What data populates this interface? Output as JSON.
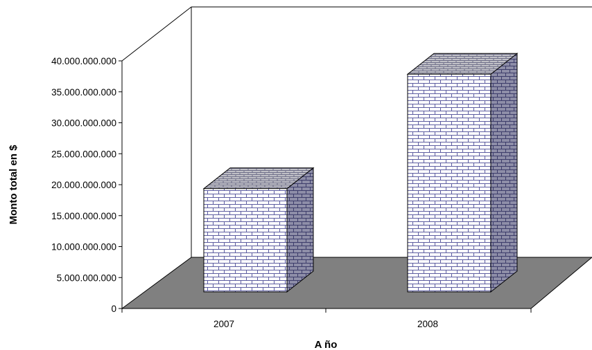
{
  "chart_data": {
    "type": "bar",
    "categories": [
      "2007",
      "2008"
    ],
    "values": [
      17300000000,
      39100000000
    ],
    "xlabel": "A ño",
    "ylabel": "Monto total en $",
    "ylim": [
      0,
      40000000000
    ],
    "yticks": [
      0,
      5000000000,
      10000000000,
      15000000000,
      20000000000,
      25000000000,
      30000000000,
      35000000000,
      40000000000
    ],
    "ytick_labels": [
      "0",
      "5.000.000.000",
      "10.000.000.000",
      "15.000.000.000",
      "20.000.000.000",
      "25.000.000.000",
      "30.000.000.000",
      "35.000.000.000",
      "40.000.000.000"
    ],
    "grid": false,
    "style": "3d-column-brick-pattern",
    "colors": {
      "floor": "#808080",
      "bar_fill": "#ffffff",
      "bar_brick": "#5c5ca0",
      "bar_top": "#c2c2c8",
      "bar_side": "#9a9aae",
      "frame": "#000000"
    }
  }
}
